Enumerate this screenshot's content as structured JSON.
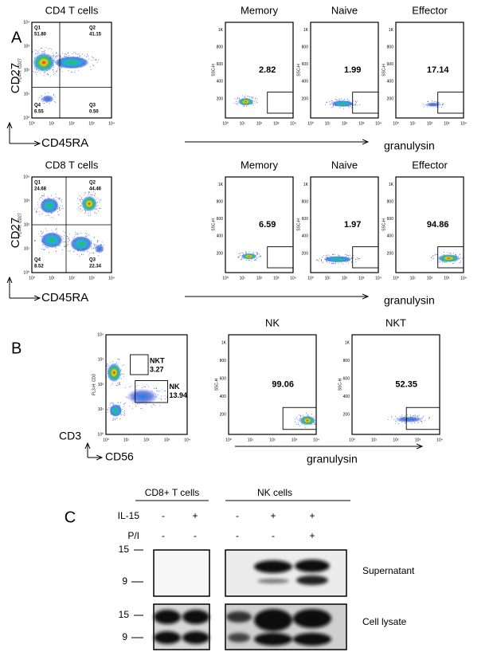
{
  "panel_a": {
    "label": "A",
    "histogram_axis": "granulysin",
    "rows": [
      {
        "population": "CD4 T cells",
        "y_axis": "CD27",
        "x_axis": "CD45RA",
        "quadrants": [
          {
            "name": "Q1",
            "value": "51.80"
          },
          {
            "name": "Q2",
            "value": "41.15"
          },
          {
            "name": "Q4",
            "value": "6.55"
          },
          {
            "name": "Q3",
            "value": "0.50"
          }
        ],
        "subsets": [
          {
            "name": "Memory",
            "value": "2.82"
          },
          {
            "name": "Naive",
            "value": "1.99"
          },
          {
            "name": "Effector",
            "value": "17.14"
          }
        ]
      },
      {
        "population": "CD8 T cells",
        "y_axis": "CD27",
        "x_axis": "CD45RA",
        "quadrants": [
          {
            "name": "Q1",
            "value": "24.68"
          },
          {
            "name": "Q2",
            "value": "44.46"
          },
          {
            "name": "Q4",
            "value": "8.52"
          },
          {
            "name": "Q3",
            "value": "22.34"
          }
        ],
        "subsets": [
          {
            "name": "Memory",
            "value": "6.59"
          },
          {
            "name": "Naive",
            "value": "1.97"
          },
          {
            "name": "Effector",
            "value": "94.86"
          }
        ]
      }
    ]
  },
  "panel_b": {
    "label": "B",
    "y_axis": "CD3",
    "x_axis": "CD56",
    "histogram_axis": "granulysin",
    "gates": [
      {
        "name": "NKT",
        "value": "3.27"
      },
      {
        "name": "NK",
        "value": "13.94"
      }
    ],
    "subsets": [
      {
        "name": "NK",
        "value": "99.06"
      },
      {
        "name": "NKT",
        "value": "52.35"
      }
    ]
  },
  "panel_c": {
    "label": "C",
    "groups": [
      "CD8+ T cells",
      "NK cells"
    ],
    "treatments": [
      {
        "name": "IL-15",
        "lanes": [
          "-",
          "+",
          "-",
          "+",
          "+"
        ]
      },
      {
        "name": "P/I",
        "lanes": [
          "-",
          "-",
          "-",
          "-",
          "+"
        ]
      }
    ],
    "markers": [
      "15",
      "9"
    ],
    "blots": [
      "Supernatant",
      "Cell lysate"
    ]
  },
  "axes": {
    "cd27_channel": "FL4-H: CD27",
    "cd3_channel": "FL3-H: CD3",
    "ssc_channel": "SSC-H",
    "log_ticks": [
      "10⁰",
      "10¹",
      "10²",
      "10³",
      "10⁴"
    ],
    "ssc_ticks": [
      "1K",
      "800",
      "600",
      "400",
      "200"
    ]
  }
}
